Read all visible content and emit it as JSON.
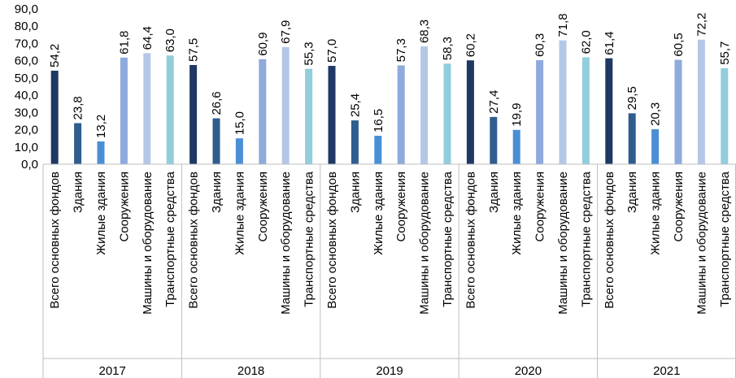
{
  "chart_data": {
    "type": "bar",
    "title": "",
    "xlabel": "",
    "ylabel": "",
    "ylim": [
      0,
      90
    ],
    "y_ticks": [
      "0,0",
      "10,0",
      "20,0",
      "30,0",
      "40,0",
      "50,0",
      "60,0",
      "70,0",
      "80,0",
      "90,0"
    ],
    "grid": false,
    "legend": "none",
    "categories": [
      "Всего основных фондов",
      "Здания",
      "Жилые здания",
      "Сооружения",
      "Машины и оборудование",
      "Транспортные средства"
    ],
    "category_colors": [
      "#1f3864",
      "#2e5d8e",
      "#4a8fd6",
      "#8faadc",
      "#b4c7e7",
      "#92cddc"
    ],
    "groups": [
      {
        "year": "2017",
        "values": [
          54.2,
          23.8,
          13.2,
          61.8,
          64.4,
          63.0
        ],
        "labels": [
          "54,2",
          "23,8",
          "13,2",
          "61,8",
          "64,4",
          "63,0"
        ]
      },
      {
        "year": "2018",
        "values": [
          57.5,
          26.6,
          15.0,
          60.9,
          67.9,
          55.3
        ],
        "labels": [
          "57,5",
          "26,6",
          "15,0",
          "60,9",
          "67,9",
          "55,3"
        ]
      },
      {
        "year": "2019",
        "values": [
          57.0,
          25.4,
          16.5,
          57.3,
          68.3,
          58.3
        ],
        "labels": [
          "57,0",
          "25,4",
          "16,5",
          "57,3",
          "68,3",
          "58,3"
        ]
      },
      {
        "year": "2020",
        "values": [
          60.2,
          27.4,
          19.9,
          60.3,
          71.8,
          62.0
        ],
        "labels": [
          "60,2",
          "27,4",
          "19,9",
          "60,3",
          "71,8",
          "62,0"
        ]
      },
      {
        "year": "2021",
        "values": [
          61.4,
          29.5,
          20.3,
          60.5,
          72.2,
          55.7
        ],
        "labels": [
          "61,4",
          "29,5",
          "20,3",
          "60,5",
          "72,2",
          "55,7"
        ]
      }
    ]
  }
}
